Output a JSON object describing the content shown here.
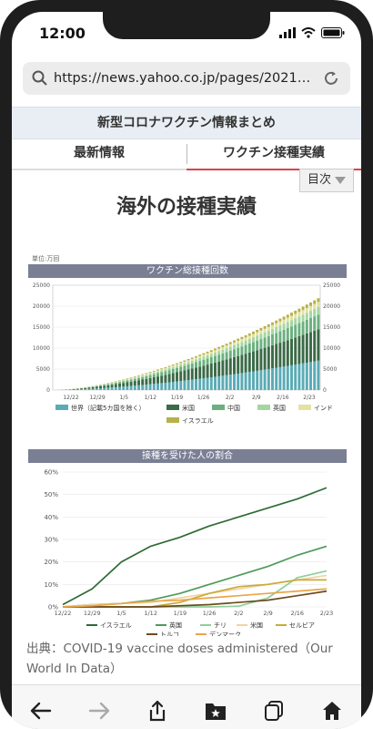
{
  "status": {
    "time": "12:00"
  },
  "browser": {
    "url": "https://news.yahoo.co.jp/pages/202101..."
  },
  "site": {
    "header_title": "新型コロナワクチン情報まとめ"
  },
  "tabs": [
    {
      "label": "最新情報",
      "active": false
    },
    {
      "label": "ワクチン接種実績",
      "active": true
    }
  ],
  "toc": {
    "label": "目次"
  },
  "page_title": "海外の接種実績",
  "source_text": "出典：COVID-19 vaccine doses administered（Our World In Data）",
  "colors": {
    "accent_tab": "#d8434f",
    "section_header": "#7a7f94"
  },
  "chart_data": [
    {
      "type": "bar",
      "title": "ワクチン総接種回数",
      "unit_label": "単位:万回",
      "x_tick_labels": [
        "12/22",
        "12/29",
        "1/5",
        "1/12",
        "1/19",
        "1/26",
        "2/2",
        "2/9",
        "2/16",
        "2/23"
      ],
      "ylim": [
        0,
        25000
      ],
      "y_ticks": [
        0,
        5000,
        10000,
        15000,
        20000,
        25000
      ],
      "legend_items": [
        "世界（記載5カ国を除く）",
        "米国",
        "中国",
        "英国",
        "インド",
        "イスラエル"
      ],
      "series": [
        {
          "name": "世界（記載5カ国を除く）",
          "color": "#5aabb5",
          "start": 0,
          "end": 7000
        },
        {
          "name": "米国",
          "color": "#3b6a47",
          "start": 0,
          "end": 7500
        },
        {
          "name": "中国",
          "color": "#6cb07f",
          "start": 0,
          "end": 3500
        },
        {
          "name": "英国",
          "color": "#a5d6a2",
          "start": 0,
          "end": 1800
        },
        {
          "name": "インド",
          "color": "#e2e2a3",
          "start": 0,
          "end": 1200
        },
        {
          "name": "イスラエル",
          "color": "#b7b14a",
          "start": 0,
          "end": 900
        }
      ]
    },
    {
      "type": "line",
      "title": "接種を受けた人の割合",
      "x_tick_labels": [
        "12/22",
        "12/29",
        "1/5",
        "1/12",
        "1/19",
        "1/26",
        "2/2",
        "2/9",
        "2/16",
        "2/23"
      ],
      "ylim": [
        0,
        60
      ],
      "y_tick_labels": [
        "0%",
        "10%",
        "20%",
        "30%",
        "40%",
        "50%",
        "60%"
      ],
      "series": [
        {
          "name": "イスラエル",
          "color": "#2f6b34",
          "values": [
            1,
            8,
            20,
            27,
            31,
            36,
            40,
            44,
            48,
            53
          ]
        },
        {
          "name": "英国",
          "color": "#4e9a5a",
          "values": [
            0,
            1,
            1.5,
            3,
            6,
            10,
            14,
            18,
            23,
            27
          ]
        },
        {
          "name": "チリ",
          "color": "#8ecf99",
          "values": [
            0,
            0,
            0,
            0,
            0,
            0,
            0.3,
            4,
            13,
            16
          ]
        },
        {
          "name": "米国",
          "color": "#f2d3a5",
          "values": [
            0,
            1,
            1.5,
            2,
            4,
            6,
            8,
            10,
            12,
            14
          ]
        },
        {
          "name": "セルビア",
          "color": "#c8ab3a",
          "values": [
            0,
            0,
            0,
            0,
            2,
            6,
            9,
            10,
            12,
            12
          ]
        },
        {
          "name": "トルコ",
          "color": "#6d4b1f",
          "values": [
            0,
            0,
            0,
            0,
            0.5,
            1,
            2,
            3,
            5,
            7
          ]
        },
        {
          "name": "デンマーク",
          "color": "#e8a64a",
          "values": [
            0,
            0.5,
            1.5,
            2.5,
            3,
            4,
            5,
            6,
            7,
            8
          ]
        }
      ]
    }
  ]
}
